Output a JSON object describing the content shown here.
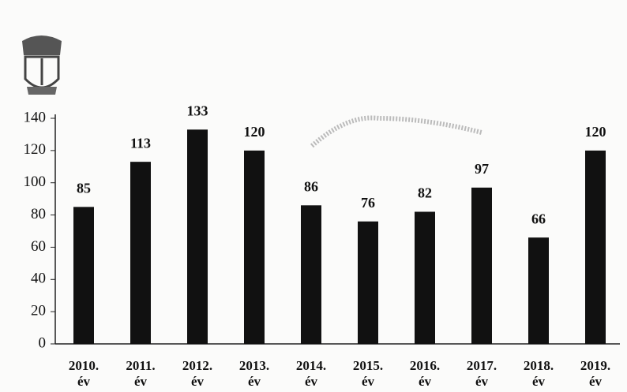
{
  "chart_data": {
    "type": "bar",
    "categories": [
      "2010.\név",
      "2011.\név",
      "2012.\név",
      "2013.\név",
      "2014.\név",
      "2015.\név",
      "2016.\név",
      "2017.\név",
      "2018.\név",
      "2019.\név"
    ],
    "values": [
      85,
      113,
      133,
      120,
      86,
      76,
      82,
      97,
      66,
      120
    ],
    "color": "#111111",
    "ylim": [
      0,
      140
    ],
    "yticks": [
      0,
      20,
      40,
      60,
      80,
      100,
      120,
      140
    ],
    "grid": false
  }
}
